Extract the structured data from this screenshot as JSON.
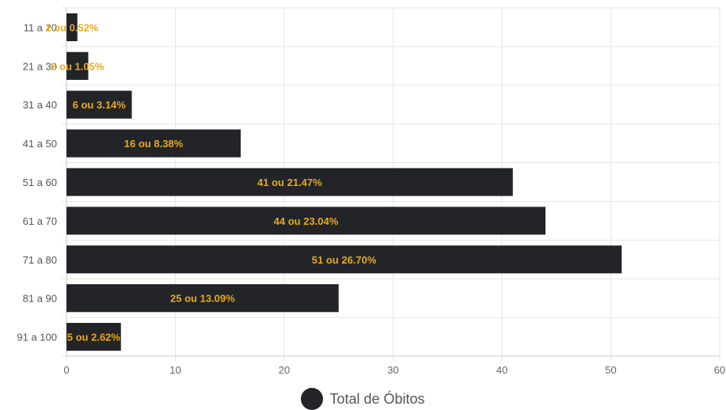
{
  "chart_data": {
    "type": "bar",
    "orientation": "horizontal",
    "categories": [
      "11 a 20",
      "21 a 30",
      "31 a 40",
      "41 a 50",
      "51 a 60",
      "61 a 70",
      "71 a 80",
      "81 a 90",
      "91 a 100"
    ],
    "series": [
      {
        "name": "Total de Óbitos",
        "values": [
          1,
          2,
          6,
          16,
          41,
          44,
          51,
          25,
          5
        ],
        "labels": [
          "1 ou 0.52%",
          "2 ou 1.05%",
          "6 ou 3.14%",
          "16 ou 8.38%",
          "41 ou 21.47%",
          "44 ou 23.04%",
          "51 ou 26.70%",
          "25 ou 13.09%",
          "5 ou 2.62%"
        ]
      }
    ],
    "xlim": [
      0,
      60
    ],
    "xticks": [
      "0",
      "10",
      "20",
      "30",
      "40",
      "50",
      "60"
    ],
    "grid": true,
    "legend": "bottom-center",
    "colors": {
      "bar": "#222428",
      "data_label": "#e8a91e"
    }
  }
}
